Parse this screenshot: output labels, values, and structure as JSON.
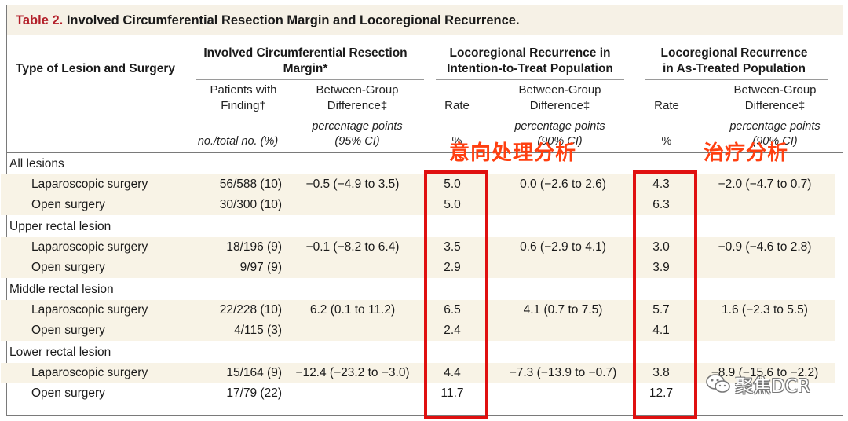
{
  "table": {
    "number": "Table 2.",
    "title": "Involved Circumferential Resection Margin and Locoregional Recurrence."
  },
  "headers": {
    "type_col": "Type of Lesion and Surgery",
    "crm_group_line1": "Involved Circumferential Resection",
    "crm_group_line2": "Margin*",
    "itt_group_line1": "Locoregional Recurrence in",
    "itt_group_line2": "Intention-to-Treat Population",
    "at_group_line1": "Locoregional Recurrence",
    "at_group_line2": "in As-Treated Population",
    "patients_line1": "Patients with",
    "patients_line2": "Finding†",
    "bgd_line1": "Between-Group",
    "bgd_line2": "Difference‡",
    "rate": "Rate",
    "units": {
      "patients": "no./total no. (%)",
      "pp": "percentage points",
      "ci95": "(95% CI)",
      "ci90_itt": "(90% CI)",
      "pct_itt": "%",
      "pct_at": "%",
      "ci90_at": "(90% CI)"
    }
  },
  "rows": [
    {
      "label": "All lesions",
      "group": true
    },
    {
      "label": "Laparoscopic surgery",
      "patients": "56/588 (10)",
      "crm_diff": "−0.5 (−4.9 to 3.5)",
      "itt_rate": "5.0",
      "itt_diff": "0.0 (−2.6 to 2.6)",
      "at_rate": "4.3",
      "at_diff": "−2.0 (−4.7 to 0.7)"
    },
    {
      "label": "Open surgery",
      "patients": "30/300 (10)",
      "crm_diff": "",
      "itt_rate": "5.0",
      "itt_diff": "",
      "at_rate": "6.3",
      "at_diff": ""
    },
    {
      "label": "Upper rectal lesion",
      "group": true
    },
    {
      "label": "Laparoscopic surgery",
      "patients": "18/196 (9)",
      "crm_diff": "−0.1 (−8.2 to 6.4)",
      "itt_rate": "3.5",
      "itt_diff": "0.6 (−2.9 to 4.1)",
      "at_rate": "3.0",
      "at_diff": "−0.9 (−4.6 to 2.8)"
    },
    {
      "label": "Open surgery",
      "patients": "9/97 (9)",
      "crm_diff": "",
      "itt_rate": "2.9",
      "itt_diff": "",
      "at_rate": "3.9",
      "at_diff": ""
    },
    {
      "label": "Middle rectal lesion",
      "group": true
    },
    {
      "label": "Laparoscopic surgery",
      "patients": "22/228 (10)",
      "crm_diff": "6.2 (0.1 to 11.2)",
      "itt_rate": "6.5",
      "itt_diff": "4.1 (0.7 to 7.5)",
      "at_rate": "5.7",
      "at_diff": "1.6 (−2.3 to 5.5)"
    },
    {
      "label": "Open surgery",
      "patients": "4/115 (3)",
      "crm_diff": "",
      "itt_rate": "2.4",
      "itt_diff": "",
      "at_rate": "4.1",
      "at_diff": ""
    },
    {
      "label": "Lower rectal lesion",
      "group": true
    },
    {
      "label": "Laparoscopic surgery",
      "patients": "15/164 (9)",
      "crm_diff": "−12.4 (−23.2 to −3.0)",
      "itt_rate": "4.4",
      "itt_diff": "−7.3 (−13.9 to −0.7)",
      "at_rate": "3.8",
      "at_diff": "−8.9 (−15.6 to −2.2)"
    },
    {
      "label": "Open surgery",
      "patients": "17/79 (22)",
      "crm_diff": "",
      "itt_rate": "11.7",
      "itt_diff": "",
      "at_rate": "12.7",
      "at_diff": ""
    }
  ],
  "annotations": {
    "itt": "意向处理分析",
    "at": "治疗分析",
    "color": "#ff3f10",
    "box_color": "#e01010"
  },
  "watermark": {
    "text": "聚焦DCR",
    "icon": "wechat-icon"
  }
}
